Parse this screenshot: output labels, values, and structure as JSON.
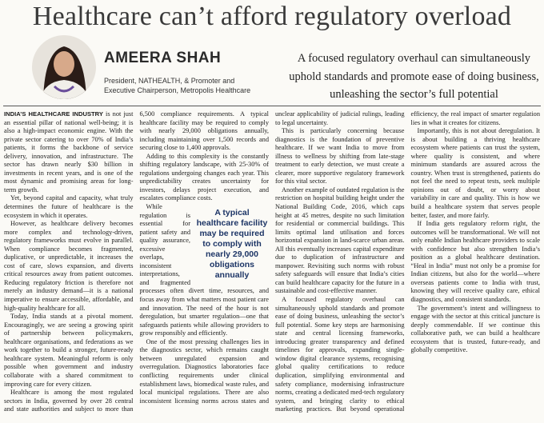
{
  "header": {
    "title": "Healthcare can’t afford regulatory overload"
  },
  "author": {
    "name": "AMEERA SHAH",
    "designation": "President, NATHEALTH, & Promoter and Executive Chairperson, Metropolis Healthcare"
  },
  "deck": "A focused regulatory overhaul can simultaneously uphold standards and promote ease of doing business, unleashing the sector’s full potential",
  "pull_quote": "A typical healthcare facility may be required to comply with nearly 29,000 obligations annually",
  "article": {
    "lead": "INDIA’S HEALTHCARE INDUSTRY",
    "paragraphs": [
      "is not just an essential pillar of national well-being; it is also a high-impact economic engine. With the private sector catering to over 70% of India’s patients, it forms the backbone of service delivery, innovation, and infrastructure. The sector has drawn nearly $30 billion in investments in recent years, and is one of the most dynamic and promising areas for long-term growth.",
      "Yet, beyond capital and capacity, what truly determines the future of healthcare is the ecosystem in which it operates.",
      "However, as healthcare delivery becomes more complex and technology-driven, regulatory frameworks must evolve in parallel. When compliance becomes fragmented, duplicative, or unpredictable, it increases the cost of care, slows expansion, and diverts critical resources away from patient outcomes. Reducing regulatory friction is therefore not merely an industry demand—it is a national imperative to ensure accessible, affordable, and high-quality healthcare for all.",
      "Today, India stands at a pivotal moment. Encouragingly, we are seeing a growing spirit of partnership between policymakers, healthcare organisations, and federations as we work together to build a stronger, future-ready healthcare system. Meaningful reform is only possible when government and industry collaborate with a shared commitment to improving care for every citizen.",
      "Healthcare is among the most regulated sectors in India, governed by over 28 central and state authorities and subject to more than 6,500 compliance requirements. A typical healthcare facility may be required to comply with nearly 29,000 obligations annually, including maintaining over 1,500 records and securing close to 1,400 approvals.",
      "Adding to this complexity is the constantly shifting regulatory landscape, with 25-30% of regulations undergoing changes each year. This unpredictability creates uncertainty for investors, delays project execution, and escalates compliance costs.",
      "While regulation is essential for patient safety and quality assurance, excessive overlaps, inconsistent interpretations, and fragmented processes often divert time, resources, and focus away from what matters most patient care and innovation. The need of the hour is not deregulation, but smarter regulation—one that safeguards patients while allowing providers to grow responsibly and efficiently.",
      "One of the most pressing challenges lies in the diagnostics sector, which remains caught between unregulated expansion and overregulation. Diagnostics laboratories face conflicting requirements under clinical establishment laws, biomedical waste rules, and local municipal regulations. There are also inconsistent licensing norms across states and unclear applicability of judicial rulings, leading to legal uncertainty.",
      "This is particularly concerning because diagnostics is the foundation of preventive healthcare. If we want India to move from illness to wellness by shifting from late-stage treatment to early detection, we must create a clearer, more supportive regulatory framework for this vital sector.",
      "Another example of outdated regulation is the restriction on hospital building height under the National Building Code, 2016, which caps height at 45 metres, despite no such limitation for residential or commercial buildings. This limits optimal land utilisation and forces horizontal expansion in land-scarce urban areas. All this eventually increases capital expenditure due to duplication of infrastructure and manpower. Revisiting such norms with robust safety safeguards will ensure that India’s cities can build healthcare capacity for the future in a sustainable and cost-effective manner.",
      "A focused regulatory overhaul can simultaneously uphold standards and promote ease of doing business, unleashing the sector’s full potential. Some key steps are harmonising state and central licensing frameworks, introducing greater transparency and defined timelines for approvals, expanding single-window digital clearance systems, recognising global quality certifications to reduce duplication, simplifying environmental and safety compliance, modernising infrastructure norms, creating a dedicated med-tech regulatory system, and bringing clarity to ethical marketing practices. But beyond operational efficiency, the real impact of smarter regulation lies in what it creates for citizens.",
      "Importantly, this is not about deregulation. It is about building a thriving healthcare ecosystem where patients can trust the system, where quality is consistent, and where minimum standards are assured across the country. When trust is strengthened, patients do not feel the need to repeat tests, seek multiple opinions out of doubt, or worry about variability in care and quality. This is how we build a healthcare system that serves people better, faster, and more fairly.",
      "If India gets regulatory reform right, the outcomes will be transformational. We will not only enable Indian healthcare providers to scale with confidence but also strengthen India’s position as a global healthcare destination. “Heal in India” must not only be a promise for Indian citizens, but also for the world—where overseas patients come to India with trust, knowing they will receive quality care, ethical diagnostics, and consistent standards.",
      "The government’s intent and willingness to engage with the sector at this critical juncture is deeply commendable. If we continue this collaborative path, we can build a healthcare ecosystem that is trusted, future-ready, and globally competitive."
    ]
  }
}
